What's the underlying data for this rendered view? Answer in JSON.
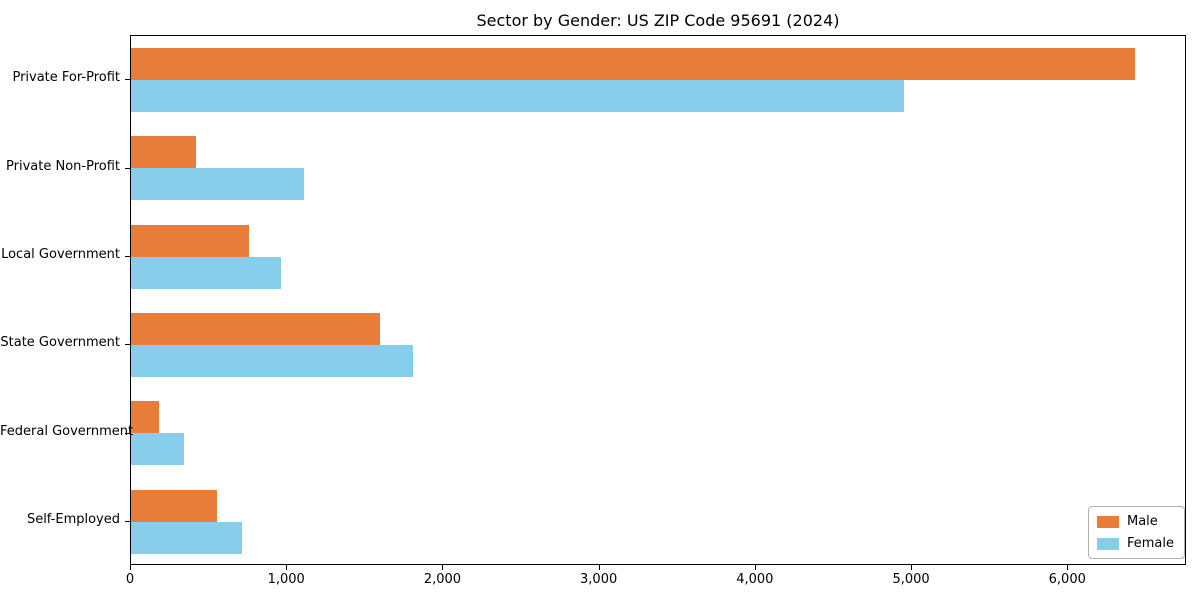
{
  "chart_data": {
    "type": "bar",
    "orientation": "horizontal",
    "title": "Sector by Gender: US ZIP Code 95691 (2024)",
    "categories": [
      "Private For-Profit",
      "Private Non-Profit",
      "Local Government",
      "State Government",
      "Federal Government",
      "Self-Employed"
    ],
    "series": [
      {
        "name": "Male",
        "color": "#E87D3B",
        "values": [
          6440,
          420,
          760,
          1600,
          180,
          550
        ]
      },
      {
        "name": "Female",
        "color": "#87CEEB",
        "values": [
          4960,
          1110,
          960,
          1810,
          340,
          710
        ]
      }
    ],
    "xlabel": "",
    "ylabel": "",
    "xlim": [
      0,
      6760
    ],
    "x_ticks": [
      0,
      1000,
      2000,
      3000,
      4000,
      5000,
      6000
    ],
    "x_tick_labels": [
      "0",
      "1,000",
      "2,000",
      "3,000",
      "4,000",
      "5,000",
      "6,000"
    ],
    "legend_position": "lower right",
    "grid": false,
    "background_color": "#ffffff",
    "spine_color": "#000000"
  }
}
